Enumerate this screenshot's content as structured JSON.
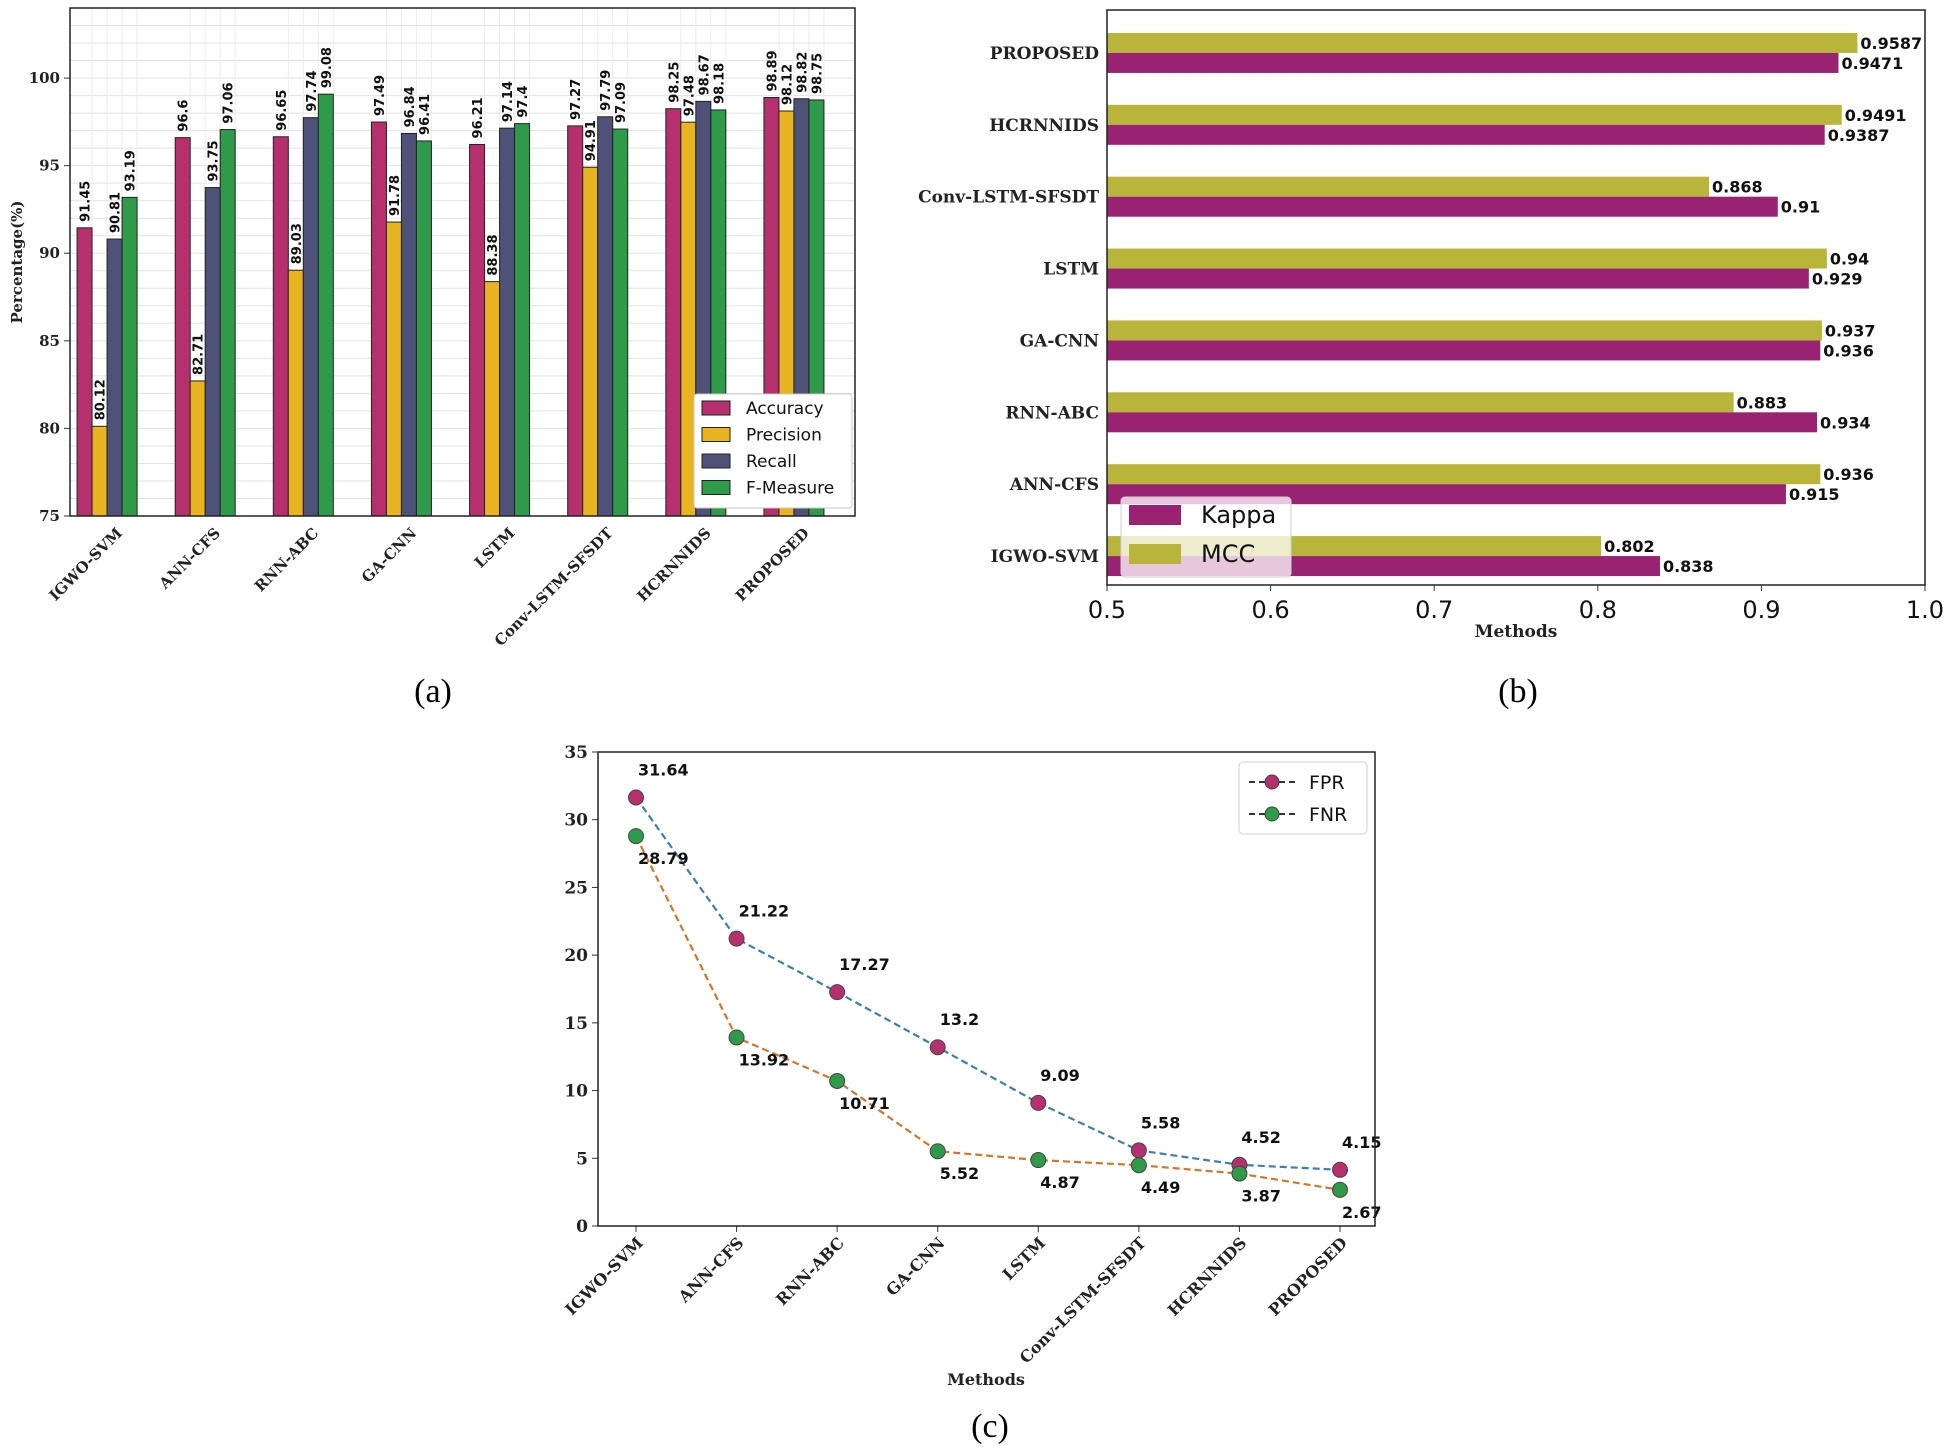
{
  "captions": [
    "(a)",
    "(b)",
    "(c)"
  ],
  "chart_data": [
    {
      "type": "bar",
      "panel": "a",
      "title": "",
      "xlabel": "",
      "ylabel": "Percentage(%)",
      "ylim": [
        75,
        104
      ],
      "yticks": [
        75,
        80,
        85,
        90,
        95,
        100
      ],
      "grid": true,
      "legend_position": "bottom-right",
      "categories": [
        "IGWO-SVM",
        "ANN-CFS",
        "RNN-ABC",
        "GA-CNN",
        "LSTM",
        "Conv-LSTM-SFSDT",
        "HCRNNIDS",
        "PROPOSED"
      ],
      "series": [
        {
          "name": "Accuracy",
          "color": "#b5306c",
          "values": [
            91.45,
            96.6,
            96.65,
            97.49,
            96.21,
            97.27,
            98.25,
            98.89
          ]
        },
        {
          "name": "Precision",
          "color": "#e9b422",
          "values": [
            80.12,
            82.71,
            89.03,
            91.78,
            88.38,
            94.91,
            97.48,
            98.12
          ]
        },
        {
          "name": "Recall",
          "color": "#4e5178",
          "values": [
            90.81,
            93.75,
            97.74,
            96.84,
            97.14,
            97.79,
            98.67,
            98.82
          ]
        },
        {
          "name": "F-Measure",
          "color": "#2f9a4a",
          "values": [
            93.19,
            97.06,
            99.08,
            96.41,
            97.4,
            97.09,
            98.18,
            98.75
          ]
        }
      ]
    },
    {
      "type": "bar",
      "orientation": "horizontal",
      "panel": "b",
      "title": "",
      "xlabel": "Methods",
      "ylabel": "",
      "xlim": [
        0.5,
        1.0
      ],
      "xticks": [
        "0.5",
        "0.6",
        "0.7",
        "0.8",
        "0.9",
        "1.0"
      ],
      "grid": false,
      "legend_position": "bottom-left",
      "categories": [
        "IGWO-SVM",
        "ANN-CFS",
        "RNN-ABC",
        "GA-CNN",
        "LSTM",
        "Conv-LSTM-SFSDT",
        "HCRNNIDS",
        "PROPOSED"
      ],
      "series": [
        {
          "name": "Kappa",
          "color": "#9a2273",
          "values": [
            0.838,
            0.915,
            0.934,
            0.936,
            0.929,
            0.91,
            0.9387,
            0.9471
          ]
        },
        {
          "name": "MCC",
          "color": "#b8b53a",
          "values": [
            0.802,
            0.936,
            0.883,
            0.937,
            0.94,
            0.868,
            0.9491,
            0.9587
          ]
        }
      ]
    },
    {
      "type": "line",
      "panel": "c",
      "title": "",
      "xlabel": "Methods",
      "ylabel": "",
      "ylim": [
        0,
        35
      ],
      "yticks": [
        0,
        5,
        10,
        15,
        20,
        25,
        30,
        35
      ],
      "grid": false,
      "legend_position": "top-right",
      "categories": [
        "IGWO-SVM",
        "ANN-CFS",
        "RNN-ABC",
        "GA-CNN",
        "LSTM",
        "Conv-LSTM-SFSDT",
        "HCRNNIDS",
        "PROPOSED"
      ],
      "series": [
        {
          "name": "FPR",
          "marker_color": "#b5306c",
          "line_color": "#3f7fa6",
          "values": [
            31.64,
            21.22,
            17.27,
            13.2,
            9.09,
            5.58,
            4.52,
            4.15
          ]
        },
        {
          "name": "FNR",
          "marker_color": "#2f9a4a",
          "line_color": "#d2762e",
          "values": [
            28.79,
            13.92,
            10.71,
            5.52,
            4.87,
            4.49,
            3.87,
            2.67
          ]
        }
      ]
    }
  ]
}
